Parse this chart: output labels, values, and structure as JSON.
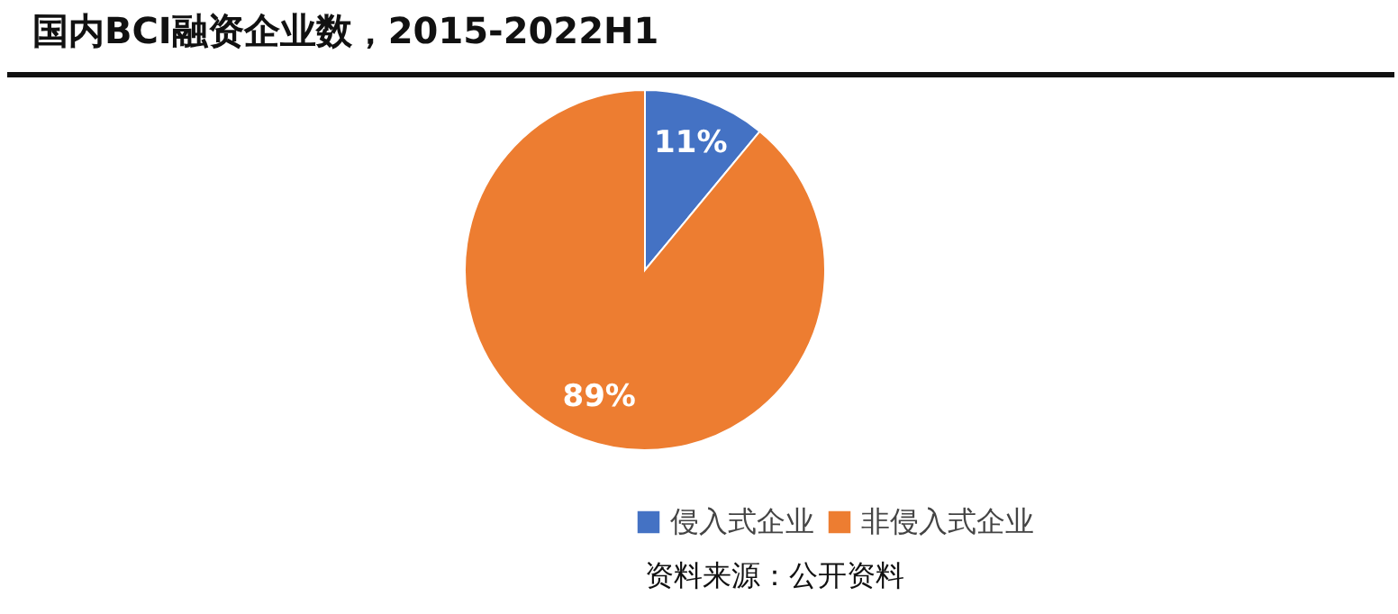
{
  "chart_data": {
    "type": "pie",
    "title": "国内BCI融资企业数，2015-2022H1",
    "categories": [
      "侵入式企业",
      "非侵入式企业"
    ],
    "values": [
      11,
      89
    ],
    "colors": [
      "#4472c4",
      "#ed7d31"
    ],
    "value_labels": [
      "11%",
      "89%"
    ],
    "legend": "bottom",
    "annotations": [
      "资料来源：公开资料"
    ]
  }
}
